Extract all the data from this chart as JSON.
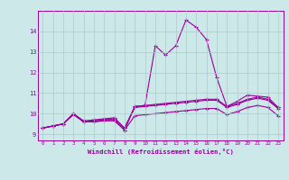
{
  "x_values": [
    0,
    1,
    2,
    3,
    4,
    5,
    6,
    7,
    8,
    9,
    10,
    11,
    12,
    13,
    14,
    15,
    16,
    17,
    18,
    19,
    20,
    21,
    22,
    23
  ],
  "line1": [
    9.3,
    9.4,
    9.5,
    10.0,
    9.6,
    9.6,
    9.7,
    9.7,
    9.2,
    10.35,
    10.4,
    13.3,
    12.85,
    13.3,
    14.55,
    14.2,
    13.6,
    11.75,
    10.35,
    10.6,
    10.9,
    10.85,
    10.8,
    10.3
  ],
  "line2": [
    9.3,
    9.4,
    9.5,
    10.0,
    9.6,
    9.65,
    9.7,
    9.75,
    9.3,
    10.35,
    10.4,
    10.45,
    10.5,
    10.55,
    10.6,
    10.65,
    10.7,
    10.7,
    10.35,
    10.5,
    10.7,
    10.8,
    10.7,
    10.3
  ],
  "line3": [
    9.3,
    9.4,
    9.5,
    10.0,
    9.65,
    9.7,
    9.75,
    9.8,
    9.3,
    10.3,
    10.35,
    10.4,
    10.45,
    10.5,
    10.55,
    10.6,
    10.65,
    10.65,
    10.3,
    10.45,
    10.65,
    10.75,
    10.65,
    10.25
  ],
  "line4": [
    9.3,
    9.4,
    9.5,
    9.95,
    9.6,
    9.6,
    9.65,
    9.65,
    9.2,
    9.9,
    9.95,
    10.0,
    10.05,
    10.1,
    10.15,
    10.2,
    10.25,
    10.25,
    9.95,
    10.1,
    10.3,
    10.4,
    10.3,
    9.9
  ],
  "line_color": "#990099",
  "bg_color": "#cce8e8",
  "grid_color": "#aacccc",
  "ylabel_values": [
    9,
    10,
    11,
    12,
    13,
    14
  ],
  "xlabel_values": [
    0,
    1,
    2,
    3,
    4,
    5,
    6,
    7,
    8,
    9,
    10,
    11,
    12,
    13,
    14,
    15,
    16,
    17,
    18,
    19,
    20,
    21,
    22,
    23
  ],
  "xlabel": "Windchill (Refroidissement éolien,°C)",
  "ylim": [
    8.7,
    15.0
  ],
  "xlim": [
    -0.5,
    23.5
  ]
}
